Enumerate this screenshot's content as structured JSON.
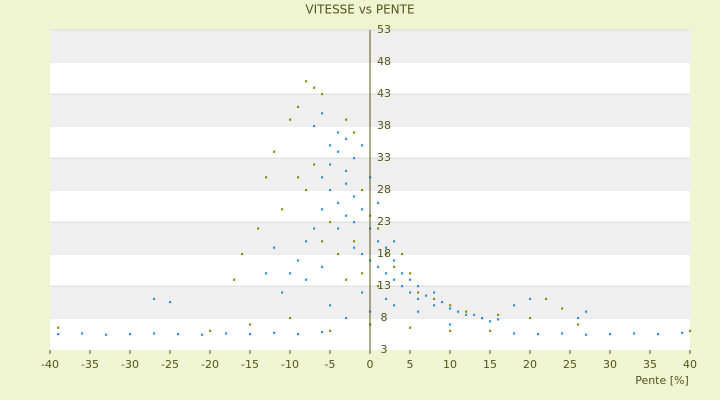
{
  "chart_data": {
    "type": "scatter",
    "title": "VITESSE vs PENTE",
    "x_label": "Pente [%]",
    "xlim": [
      -40,
      40
    ],
    "xticks": [
      -40,
      -35,
      -30,
      -25,
      -20,
      -15,
      -10,
      -5,
      0,
      5,
      10,
      15,
      20,
      25,
      30,
      35,
      40
    ],
    "ylim": [
      3,
      53
    ],
    "yticks": [
      3,
      8,
      13,
      18,
      23,
      28,
      33,
      38,
      43,
      48,
      53
    ],
    "grid": true,
    "series": [
      {
        "color": "#8c8c12",
        "x": [
          -8,
          -7,
          -6,
          -9,
          -10,
          -12,
          -13,
          -11,
          -14,
          -16,
          -17,
          -9,
          -8,
          -7,
          -6,
          -5,
          -4,
          -3,
          -2,
          -1,
          0,
          1,
          2,
          3,
          4,
          5,
          6,
          8,
          10,
          12,
          14,
          16,
          20,
          22,
          24,
          26,
          -20,
          -15,
          -10,
          -5,
          0,
          5,
          10,
          15,
          40,
          -39,
          -2,
          -3,
          -1,
          1
        ],
        "values": [
          45,
          44,
          43,
          41,
          39,
          34,
          30,
          25,
          22,
          18,
          14,
          30,
          28,
          32,
          20,
          23,
          18,
          14,
          20,
          28,
          24,
          22,
          18,
          16,
          18,
          15,
          12,
          11,
          10,
          9,
          8,
          8.5,
          8,
          11,
          9.5,
          7,
          6,
          7,
          8,
          6,
          7,
          6.5,
          6,
          6,
          6,
          6.5,
          37,
          39,
          15,
          13
        ]
      },
      {
        "color": "#3a8fd9",
        "x": [
          -39,
          -36,
          -33,
          -30,
          -27,
          -24,
          -21,
          -18,
          -15,
          -12,
          -9,
          -6,
          18,
          21,
          24,
          27,
          30,
          33,
          36,
          39,
          -27,
          -25,
          -13,
          -12,
          -6,
          -5,
          -4,
          -3,
          -5,
          -4,
          -3,
          -2,
          -6,
          -7,
          -8,
          -9,
          -10,
          -4,
          -3,
          -2,
          -1,
          0,
          -2,
          -1,
          0,
          1,
          2,
          1,
          2,
          3,
          3,
          4,
          5,
          4,
          6,
          7,
          8,
          9,
          10,
          11,
          12,
          13,
          14,
          15,
          16,
          5,
          6,
          8,
          -3,
          -4,
          -6,
          -7,
          -11,
          -8,
          -6,
          -5,
          -3,
          -1,
          0,
          2,
          3,
          6,
          10,
          18,
          20,
          26,
          27,
          -5,
          -2,
          0,
          1,
          -1,
          3
        ],
        "values": [
          5.5,
          5.6,
          5.4,
          5.5,
          5.6,
          5.5,
          5.4,
          5.6,
          5.5,
          5.7,
          5.5,
          5.8,
          5.6,
          5.5,
          5.6,
          5.4,
          5.5,
          5.6,
          5.5,
          5.7,
          11,
          10.5,
          15,
          19,
          30,
          32,
          34,
          31,
          28,
          26,
          29,
          27,
          25,
          22,
          20,
          17,
          15,
          22,
          24,
          23,
          25,
          22,
          19,
          18,
          17,
          20,
          19,
          16,
          15,
          14,
          17,
          13,
          12,
          15,
          11,
          11.5,
          10,
          10.5,
          9.5,
          9,
          8.5,
          8.5,
          8,
          7.5,
          7.8,
          14,
          13,
          12,
          36,
          37,
          40,
          38,
          12,
          14,
          16,
          10,
          8,
          12,
          9,
          11,
          10,
          9,
          7,
          10,
          11,
          8,
          9,
          35,
          33,
          30,
          26,
          35,
          20
        ]
      }
    ]
  }
}
